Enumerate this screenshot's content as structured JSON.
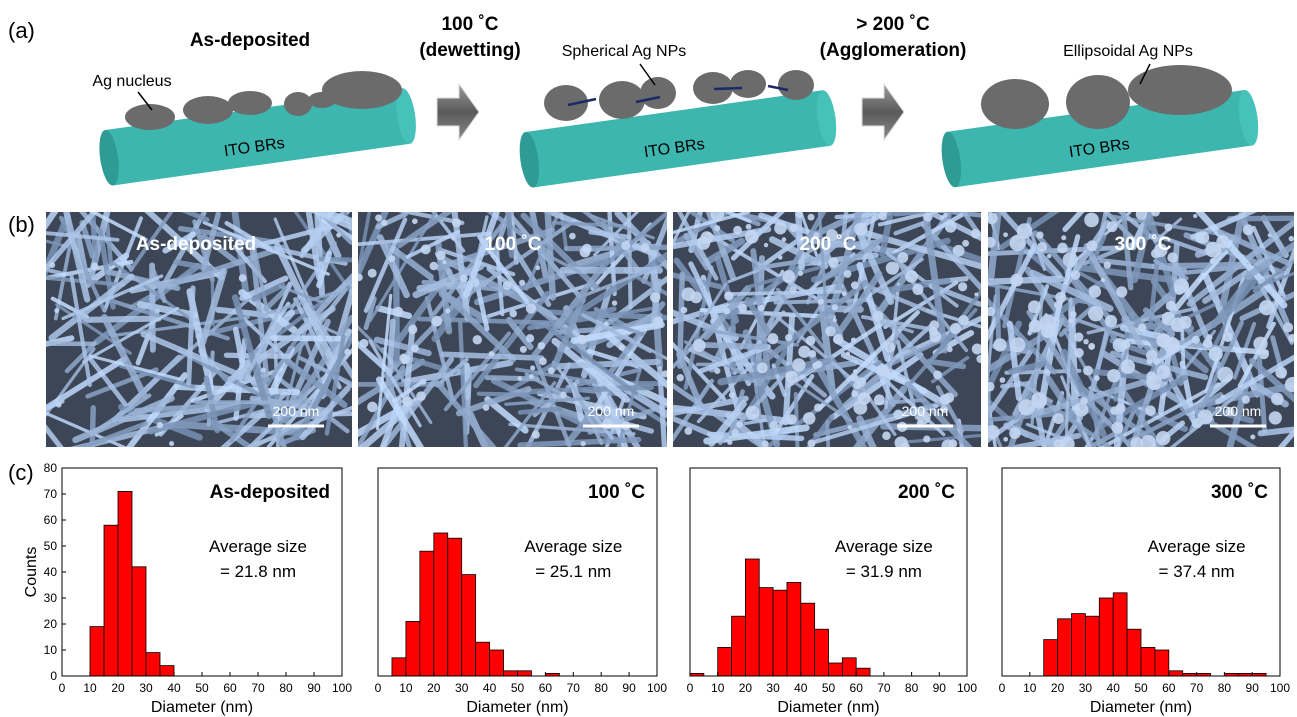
{
  "panel_labels": [
    "(a)",
    "(b)",
    "(c)"
  ],
  "schematic": {
    "stage_title": "As-deposited",
    "step1": [
      "100 ˚C",
      "(dewetting)"
    ],
    "step2": [
      "> 200 ˚C",
      "(Agglomeration)"
    ],
    "labels": [
      "Ag nucleus",
      "Spherical Ag NPs",
      "Ellipsoidal Ag NPs"
    ],
    "substrate": [
      "ITO BRs",
      "ITO BRs",
      "ITO BRs"
    ]
  },
  "sem": {
    "panels": [
      {
        "label": "As-deposited",
        "scale_bar": "200 nm"
      },
      {
        "label": "100 ˚C",
        "scale_bar": "200 nm"
      },
      {
        "label": "200 ˚C",
        "scale_bar": "200 nm"
      },
      {
        "label": "300 ˚C",
        "scale_bar": "200 nm"
      }
    ]
  },
  "chart_data": [
    {
      "type": "histogram",
      "title": "As-deposited",
      "annotation": [
        "Average size",
        "= 21.8 nm"
      ],
      "bins": [
        10,
        15,
        20,
        25,
        30,
        35,
        40
      ],
      "counts": [
        19,
        58,
        71,
        42,
        9,
        4
      ],
      "color": "#ff0000",
      "xlabel": "Diameter (nm)",
      "ylabel": "Counts",
      "xlim": [
        0,
        100
      ],
      "xticks": [
        0,
        10,
        20,
        30,
        40,
        50,
        60,
        70,
        80,
        90,
        100
      ],
      "ylim": [
        0,
        80
      ],
      "yticks": [
        0,
        10,
        20,
        30,
        40,
        50,
        60,
        70,
        80
      ]
    },
    {
      "type": "histogram",
      "title": "100 ˚C",
      "annotation": [
        "Average size",
        "= 25.1 nm"
      ],
      "bins": [
        5,
        10,
        15,
        20,
        25,
        30,
        35,
        40,
        45,
        50,
        55,
        60,
        65
      ],
      "counts": [
        7,
        21,
        48,
        55,
        53,
        39,
        13,
        10,
        2,
        2,
        0,
        1
      ],
      "color": "#ff0000",
      "xlabel": "Diameter (nm)",
      "xlim": [
        0,
        100
      ],
      "xticks": [
        0,
        10,
        20,
        30,
        40,
        50,
        60,
        70,
        80,
        90,
        100
      ],
      "ylim": [
        0,
        80
      ]
    },
    {
      "type": "histogram",
      "title": "200 ˚C",
      "annotation": [
        "Average size",
        "= 31.9 nm"
      ],
      "bins": [
        0,
        5,
        10,
        15,
        20,
        25,
        30,
        35,
        40,
        45,
        50,
        55,
        60,
        65
      ],
      "counts": [
        1,
        0,
        11,
        23,
        45,
        34,
        33,
        36,
        28,
        18,
        5,
        7,
        3
      ],
      "color": "#ff0000",
      "xlabel": "Diameter (nm)",
      "xlim": [
        0,
        100
      ],
      "xticks": [
        0,
        10,
        20,
        30,
        40,
        50,
        60,
        70,
        80,
        90,
        100
      ],
      "ylim": [
        0,
        80
      ]
    },
    {
      "type": "histogram",
      "title": "300 ˚C",
      "annotation": [
        "Average size",
        "= 37.4 nm"
      ],
      "bins": [
        15,
        20,
        25,
        30,
        35,
        40,
        45,
        50,
        55,
        60,
        65,
        70,
        75,
        80,
        85,
        90,
        95
      ],
      "counts": [
        14,
        22,
        24,
        23,
        30,
        32,
        18,
        11,
        10,
        2,
        1,
        1,
        0,
        1,
        1,
        1
      ],
      "color": "#ff0000",
      "xlabel": "Diameter (nm)",
      "xlim": [
        0,
        100
      ],
      "xticks": [
        0,
        10,
        20,
        30,
        40,
        50,
        60,
        70,
        80,
        90,
        100
      ],
      "ylim": [
        0,
        80
      ]
    }
  ]
}
